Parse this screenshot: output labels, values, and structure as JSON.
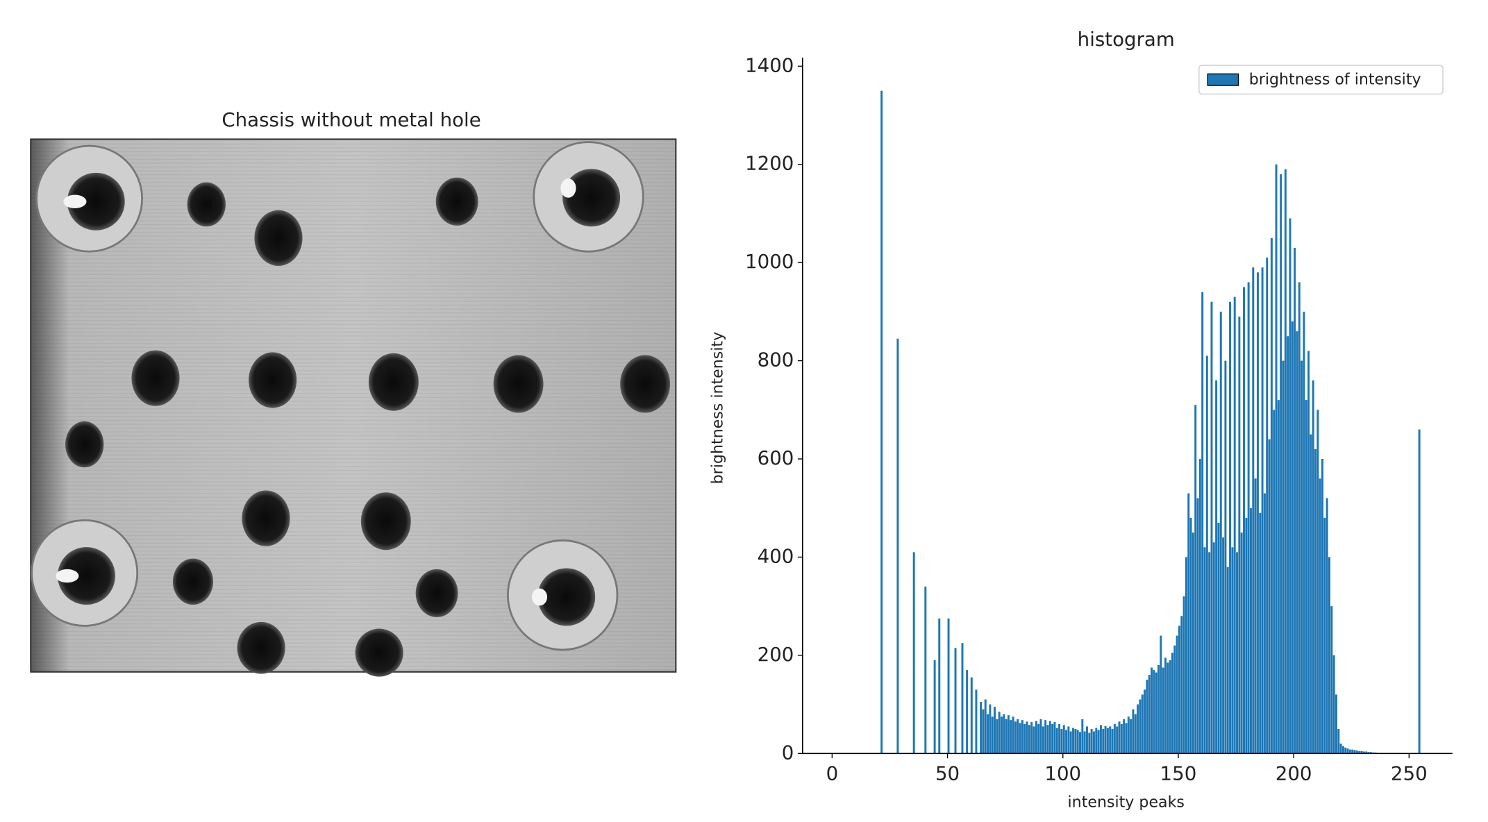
{
  "image_panel": {
    "title": "Chassis without metal hole"
  },
  "chart_data": {
    "type": "histogram",
    "title": "histogram",
    "x_label": "intensity peaks",
    "y_label": "brightness intensity",
    "bins": [
      0,
      1,
      2,
      3,
      4,
      5,
      6,
      7,
      8,
      9,
      10,
      11,
      12,
      13,
      14,
      15,
      16,
      17,
      18,
      19,
      20,
      21,
      22,
      23,
      24,
      25,
      26,
      27,
      28,
      29,
      30,
      31,
      32,
      33,
      34,
      35,
      36,
      37,
      38,
      39,
      40,
      41,
      42,
      43,
      44,
      45,
      46,
      47,
      48,
      49,
      50,
      51,
      52,
      53,
      54,
      55,
      56,
      57,
      58,
      59,
      60,
      61,
      62,
      63,
      64,
      65,
      66,
      67,
      68,
      69,
      70,
      71,
      72,
      73,
      74,
      75,
      76,
      77,
      78,
      79,
      80,
      81,
      82,
      83,
      84,
      85,
      86,
      87,
      88,
      89,
      90,
      91,
      92,
      93,
      94,
      95,
      96,
      97,
      98,
      99,
      100,
      101,
      102,
      103,
      104,
      105,
      106,
      107,
      108,
      109,
      110,
      111,
      112,
      113,
      114,
      115,
      116,
      117,
      118,
      119,
      120,
      121,
      122,
      123,
      124,
      125,
      126,
      127,
      128,
      129,
      130,
      131,
      132,
      133,
      134,
      135,
      136,
      137,
      138,
      139,
      140,
      141,
      142,
      143,
      144,
      145,
      146,
      147,
      148,
      149,
      150,
      151,
      152,
      153,
      154,
      155,
      156,
      157,
      158,
      159,
      160,
      161,
      162,
      163,
      164,
      165,
      166,
      167,
      168,
      169,
      170,
      171,
      172,
      173,
      174,
      175,
      176,
      177,
      178,
      179,
      180,
      181,
      182,
      183,
      184,
      185,
      186,
      187,
      188,
      189,
      190,
      191,
      192,
      193,
      194,
      195,
      196,
      197,
      198,
      199,
      200,
      201,
      202,
      203,
      204,
      205,
      206,
      207,
      208,
      209,
      210,
      211,
      212,
      213,
      214,
      215,
      216,
      217,
      218,
      219,
      220,
      221,
      222,
      223,
      224,
      225,
      226,
      227,
      228,
      229,
      230,
      231,
      232,
      233,
      234,
      235,
      236,
      237,
      238,
      239,
      240,
      241,
      242,
      243,
      244,
      245,
      246,
      247,
      248,
      249,
      250,
      251,
      252,
      253,
      254,
      255,
      256
    ],
    "series": [
      {
        "name": "brightness of intensity",
        "color": "#1f77b4",
        "values": [
          0,
          0,
          0,
          0,
          0,
          0,
          0,
          0,
          0,
          0,
          0,
          0,
          0,
          0,
          0,
          0,
          0,
          0,
          0,
          0,
          0,
          1350,
          0,
          0,
          0,
          0,
          0,
          0,
          845,
          0,
          0,
          0,
          0,
          0,
          0,
          410,
          0,
          0,
          0,
          0,
          340,
          0,
          0,
          0,
          190,
          0,
          275,
          0,
          0,
          0,
          275,
          0,
          0,
          215,
          0,
          0,
          225,
          0,
          170,
          0,
          155,
          0,
          130,
          0,
          105,
          90,
          110,
          80,
          100,
          75,
          95,
          70,
          85,
          75,
          80,
          70,
          78,
          68,
          75,
          65,
          70,
          62,
          68,
          60,
          65,
          58,
          64,
          55,
          66,
          60,
          70,
          55,
          68,
          58,
          66,
          60,
          64,
          52,
          60,
          50,
          58,
          48,
          55,
          45,
          52,
          50,
          48,
          44,
          70,
          45,
          55,
          42,
          50,
          45,
          52,
          48,
          58,
          50,
          56,
          52,
          55,
          50,
          60,
          55,
          65,
          60,
          70,
          62,
          75,
          70,
          90,
          80,
          100,
          110,
          120,
          130,
          150,
          160,
          175,
          170,
          165,
          180,
          240,
          175,
          195,
          185,
          190,
          205,
          220,
          240,
          260,
          280,
          320,
          400,
          530,
          480,
          450,
          710,
          520,
          600,
          940,
          420,
          810,
          410,
          920,
          430,
          760,
          470,
          900,
          440,
          800,
          380,
          920,
          420,
          930,
          410,
          890,
          450,
          950,
          480,
          960,
          500,
          990,
          560,
          980,
          490,
          990,
          530,
          1010,
          640,
          1050,
          700,
          1200,
          720,
          1180,
          800,
          1190,
          850,
          1090,
          880,
          1030,
          860,
          960,
          800,
          900,
          720,
          820,
          650,
          760,
          620,
          700,
          560,
          600,
          480,
          520,
          400,
          300,
          200,
          120,
          50,
          20,
          15,
          12,
          10,
          8,
          8,
          7,
          6,
          5,
          5,
          4,
          4,
          3,
          3,
          2,
          2,
          1,
          0,
          0,
          0,
          0,
          0,
          0,
          0,
          0,
          0,
          0,
          0,
          0,
          0,
          0,
          0,
          0,
          0,
          660,
          0
        ]
      }
    ],
    "xlim": [
      -12.8,
      268.8
    ],
    "ylim": [
      0,
      1417.5
    ],
    "xticks": [
      0,
      50,
      100,
      150,
      200,
      250
    ],
    "yticks": [
      0,
      200,
      400,
      600,
      800,
      1000,
      1200,
      1400
    ],
    "legend": "upper right",
    "grid": false
  }
}
